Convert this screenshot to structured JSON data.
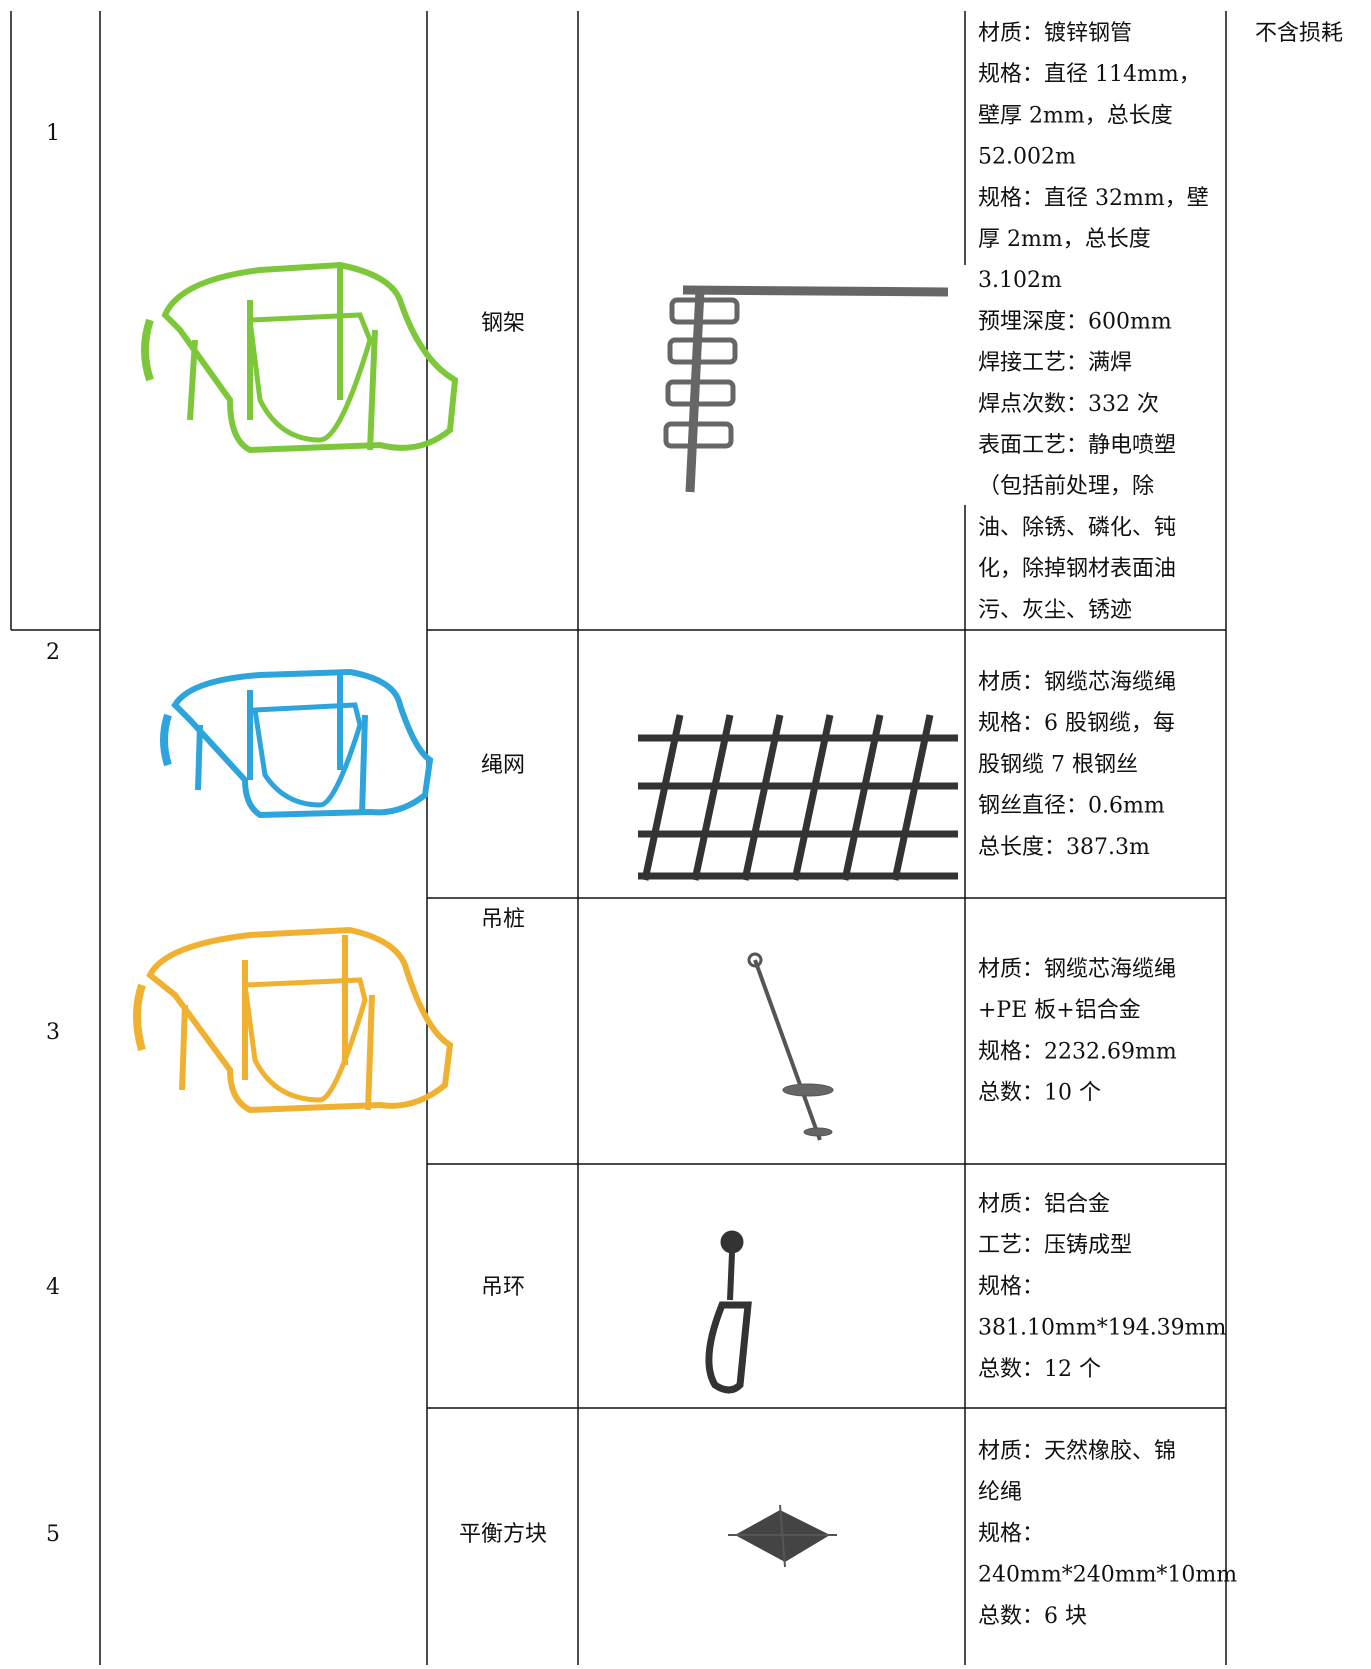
{
  "table": {
    "rows": [
      {
        "no": "1",
        "name": "钢架",
        "spec": [
          "材质：镀锌钢管",
          "规格：直径 114mm，",
          "壁厚 2mm，总长度",
          "52.002m",
          "规格：直径 32mm，壁",
          "厚 2mm，总长度",
          "3.102m",
          "预埋深度：600mm",
          "焊接工艺：满焊",
          "焊点次数：332 次",
          "表面工艺：静电喷塑",
          "（包括前处理，除",
          "油、除锈、磷化、钝",
          "化，除掉钢材表面油",
          "污、灰尘、锈迹"
        ]
      },
      {
        "no": "2",
        "name": "绳网",
        "spec": [
          "材质：钢缆芯海缆绳",
          "规格：6 股钢缆，每",
          "股钢缆 7 根钢丝",
          "钢丝直径：0.6mm",
          "总长度：387.3m"
        ]
      },
      {
        "no": "3",
        "name": "吊桩",
        "spec": [
          "材质：钢缆芯海缆绳",
          "+PE 板+铝合金",
          "规格：2232.69mm",
          "总数：10 个"
        ]
      },
      {
        "no": "4",
        "name": "吊环",
        "spec": [
          "材质：铝合金",
          "工艺：压铸成型",
          "规格：",
          "381.10mm*194.39mm",
          "总数：12 个"
        ]
      },
      {
        "no": "5",
        "name": "平衡方块",
        "spec": [
          "材质：天然橡胶、锦",
          "纶绳",
          "规格：",
          "240mm*240mm*10mm",
          "总数：6 块"
        ]
      }
    ],
    "note": "不含损耗"
  }
}
